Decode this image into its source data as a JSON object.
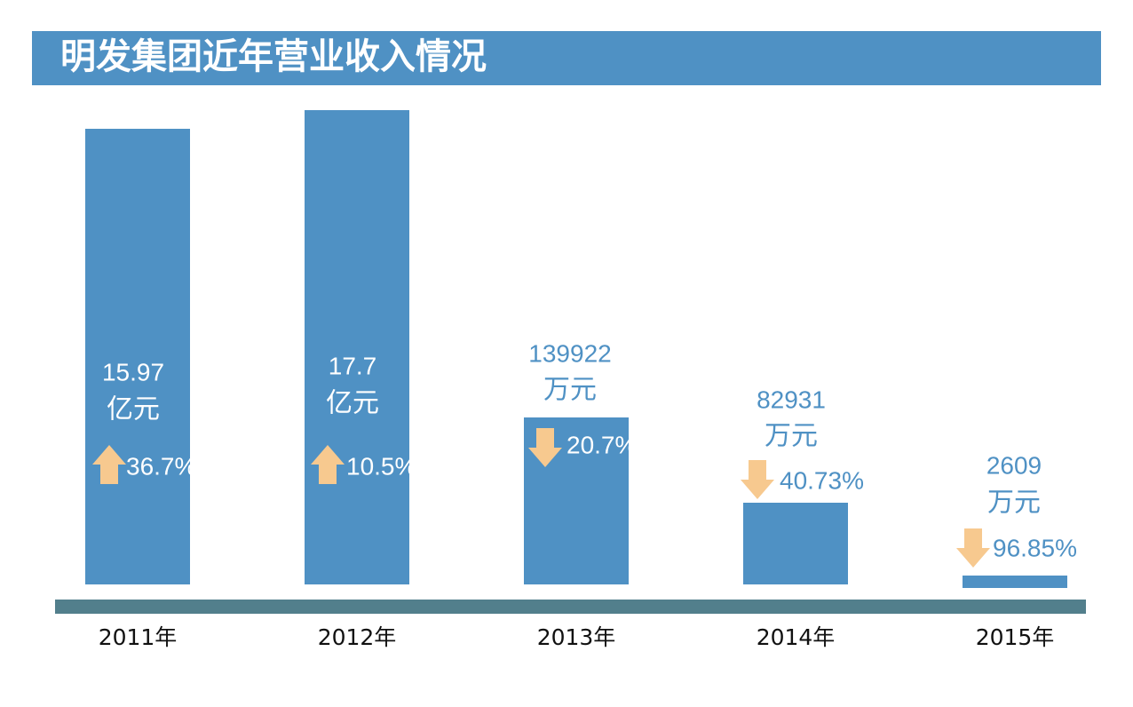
{
  "title": "明发集团近年营业收入情况",
  "years": [
    {
      "year": "2011年",
      "amount": "15.97",
      "unit": "亿元",
      "change": "36.7%"
    },
    {
      "year": "2012年",
      "amount": "17.7",
      "unit": "亿元",
      "change": "10.5%"
    },
    {
      "year": "2013年",
      "amount": "139922",
      "unit": "万元",
      "change": "20.7%"
    },
    {
      "year": "2014年",
      "amount": "82931",
      "unit": "万元",
      "change": "40.73%"
    },
    {
      "year": "2015年",
      "amount": "2609",
      "unit": "万元",
      "change": "96.85%"
    }
  ]
}
